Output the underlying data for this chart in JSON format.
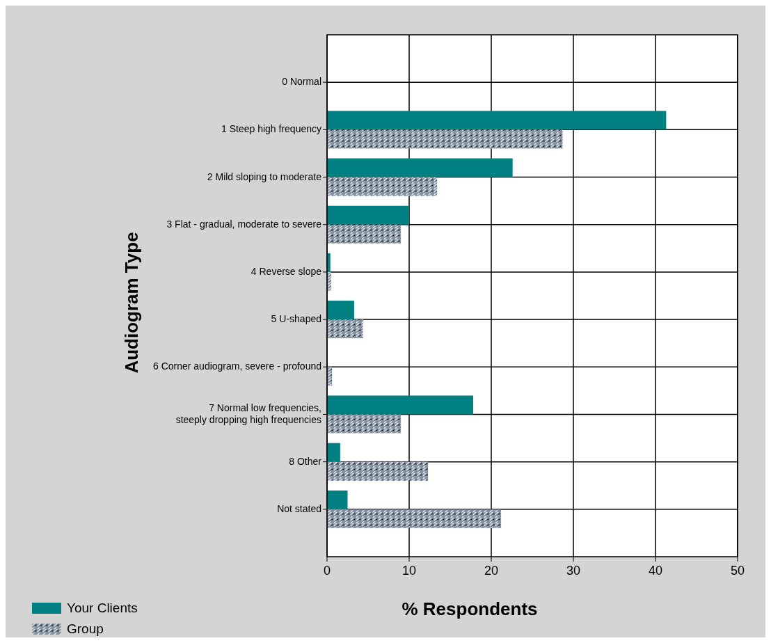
{
  "chart_data": {
    "type": "bar",
    "orientation": "horizontal",
    "xlabel": "% Respondents",
    "ylabel": "Audiogram Type",
    "categories": [
      "0 Normal",
      "1 Steep high frequency",
      "2 Mild sloping to moderate",
      "3 Flat - gradual, moderate to severe",
      "4 Reverse slope",
      "5 U-shaped",
      "6 Corner audiogram, severe - profound",
      "7 Normal low frequencies,\nsteeply dropping high frequencies",
      "8 Other",
      "Not stated"
    ],
    "series": [
      {
        "name": "Your Clients",
        "color": "#008080",
        "values": [
          0,
          41.3,
          22.6,
          10.0,
          0.4,
          3.3,
          0,
          17.8,
          1.6,
          2.5
        ]
      },
      {
        "name": "Group",
        "color": "#7f8fa0",
        "values": [
          0,
          28.7,
          13.4,
          9.0,
          0.5,
          4.4,
          0.6,
          9.0,
          12.3,
          21.2
        ]
      }
    ],
    "xlim": [
      0,
      50
    ],
    "xticks": [
      0,
      10,
      20,
      30,
      40,
      50
    ],
    "grid": true,
    "legend": "bottom left"
  }
}
